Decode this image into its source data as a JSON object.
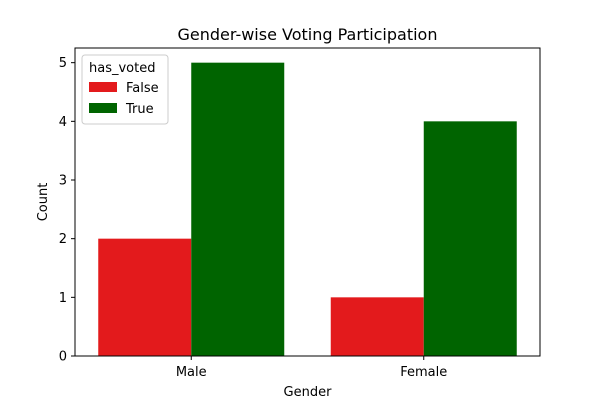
{
  "chart_data": {
    "type": "bar",
    "title": "Gender-wise Voting Participation",
    "xlabel": "Gender",
    "ylabel": "Count",
    "categories": [
      "Male",
      "Female"
    ],
    "ylim": [
      0,
      5.25
    ],
    "yticks": [
      0,
      1,
      2,
      3,
      4,
      5
    ],
    "legend": {
      "title": "has_voted",
      "placement": "top-left"
    },
    "series": [
      {
        "name": "False",
        "values": [
          2,
          1
        ],
        "color": "#e31a1c"
      },
      {
        "name": "True",
        "values": [
          5,
          4
        ],
        "color": "#006400"
      }
    ],
    "grid": false
  }
}
